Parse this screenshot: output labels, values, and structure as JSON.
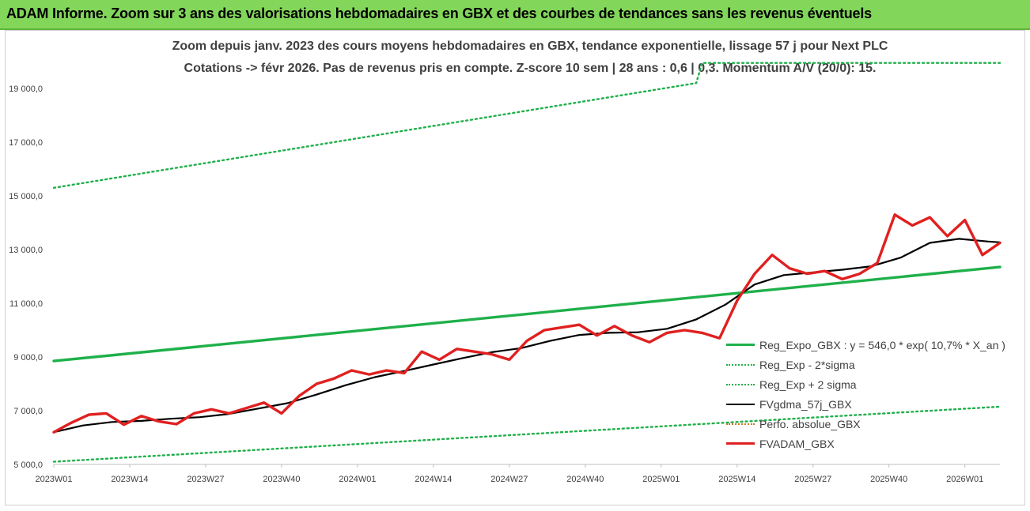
{
  "banner": {
    "title": "ADAM Informe. Zoom sur 3 ans des valorisations hebdomadaires en GBX et des courbes de tendances sans les revenus éventuels"
  },
  "chart_data": {
    "type": "line",
    "title": "Zoom depuis janv. 2023 des cours moyens hebdomadaires en GBX, tendance exponentielle, lissage 57 j pour Next PLC",
    "subtitle": "Cotations -> févr 2026. Pas de revenus pris en compte. Z-score 10 sem | 28 ans : 0,6 | 0,3. Momentum A/V (20/0): 15.",
    "xlabel": "",
    "ylabel": "",
    "ylim": [
      5000,
      20000
    ],
    "y_ticks": [
      5000,
      7000,
      9000,
      11000,
      13000,
      15000,
      17000,
      19000
    ],
    "y_tick_labels": [
      "5 000,0",
      "7 000,0",
      "9 000,0",
      "11 000,0",
      "13 000,0",
      "15 000,0",
      "17 000,0",
      "19 000,0"
    ],
    "x_ticks": [
      "2023W01",
      "2023W14",
      "2023W27",
      "2023W40",
      "2024W01",
      "2024W14",
      "2024W27",
      "2024W40",
      "2025W01",
      "2025W14",
      "2025W27",
      "2025W40",
      "2026W01"
    ],
    "x_tick_index": [
      0,
      13,
      26,
      39,
      52,
      65,
      78,
      91,
      104,
      117,
      130,
      143,
      156
    ],
    "x_count": 163,
    "grid": false,
    "legend_position": "right",
    "series": [
      {
        "name": "Reg_Expo_GBX : y = 546,0 * exp( 10,7% *  X_an )",
        "style": "solid-thick",
        "color": "#1fb04a",
        "x": [
          0,
          162
        ],
        "values": [
          8850,
          12350
        ]
      },
      {
        "name": "Reg_Exp - 2*sigma",
        "style": "dotted",
        "color": "#1fb04a",
        "x": [
          0,
          162
        ],
        "values": [
          5100,
          7150
        ]
      },
      {
        "name": "Reg_Exp + 2 sigma",
        "style": "dotted",
        "color": "#1fb04a",
        "x": [
          0,
          110,
          111,
          162
        ],
        "values": [
          15300,
          19200,
          19950,
          19950
        ]
      },
      {
        "name": "FVgdma_57j_GBX",
        "style": "solid",
        "color": "#000000",
        "x": [
          0,
          5,
          10,
          15,
          20,
          25,
          30,
          35,
          40,
          45,
          50,
          55,
          60,
          65,
          70,
          75,
          80,
          85,
          90,
          95,
          100,
          105,
          110,
          115,
          120,
          125,
          130,
          135,
          140,
          145,
          150,
          155,
          160,
          162
        ],
        "values": [
          6200,
          6450,
          6580,
          6620,
          6700,
          6760,
          6880,
          7080,
          7280,
          7600,
          7950,
          8250,
          8480,
          8720,
          8960,
          9180,
          9330,
          9600,
          9820,
          9900,
          9920,
          10050,
          10400,
          10950,
          11700,
          12050,
          12150,
          12250,
          12380,
          12700,
          13250,
          13400,
          13300,
          13270
        ]
      },
      {
        "name": "Perfo. absolue_GBX",
        "style": "dotted",
        "color": "#c77a2a",
        "x": [],
        "values": []
      },
      {
        "name": "FVADAM_GBX",
        "style": "solid-thick",
        "color": "#e02020",
        "x": [
          0,
          3,
          6,
          9,
          12,
          15,
          18,
          21,
          24,
          27,
          30,
          33,
          36,
          39,
          42,
          45,
          48,
          51,
          54,
          57,
          60,
          63,
          66,
          69,
          72,
          75,
          78,
          81,
          84,
          87,
          90,
          93,
          96,
          99,
          102,
          105,
          108,
          111,
          114,
          117,
          120,
          123,
          126,
          129,
          132,
          135,
          138,
          141,
          144,
          147,
          150,
          153,
          156,
          159,
          162
        ],
        "values": [
          6200,
          6550,
          6850,
          6900,
          6480,
          6800,
          6600,
          6500,
          6900,
          7050,
          6900,
          7100,
          7300,
          6900,
          7550,
          8000,
          8200,
          8500,
          8350,
          8500,
          8400,
          9200,
          8900,
          9300,
          9200,
          9100,
          8900,
          9600,
          10000,
          10100,
          10200,
          9800,
          10150,
          9800,
          9550,
          9900,
          10000,
          9900,
          9700,
          11100,
          12100,
          12800,
          12300,
          12100,
          12200,
          11900,
          12100,
          12500,
          14300,
          13900,
          14200,
          13500,
          14100,
          12800,
          13250
        ]
      }
    ]
  }
}
